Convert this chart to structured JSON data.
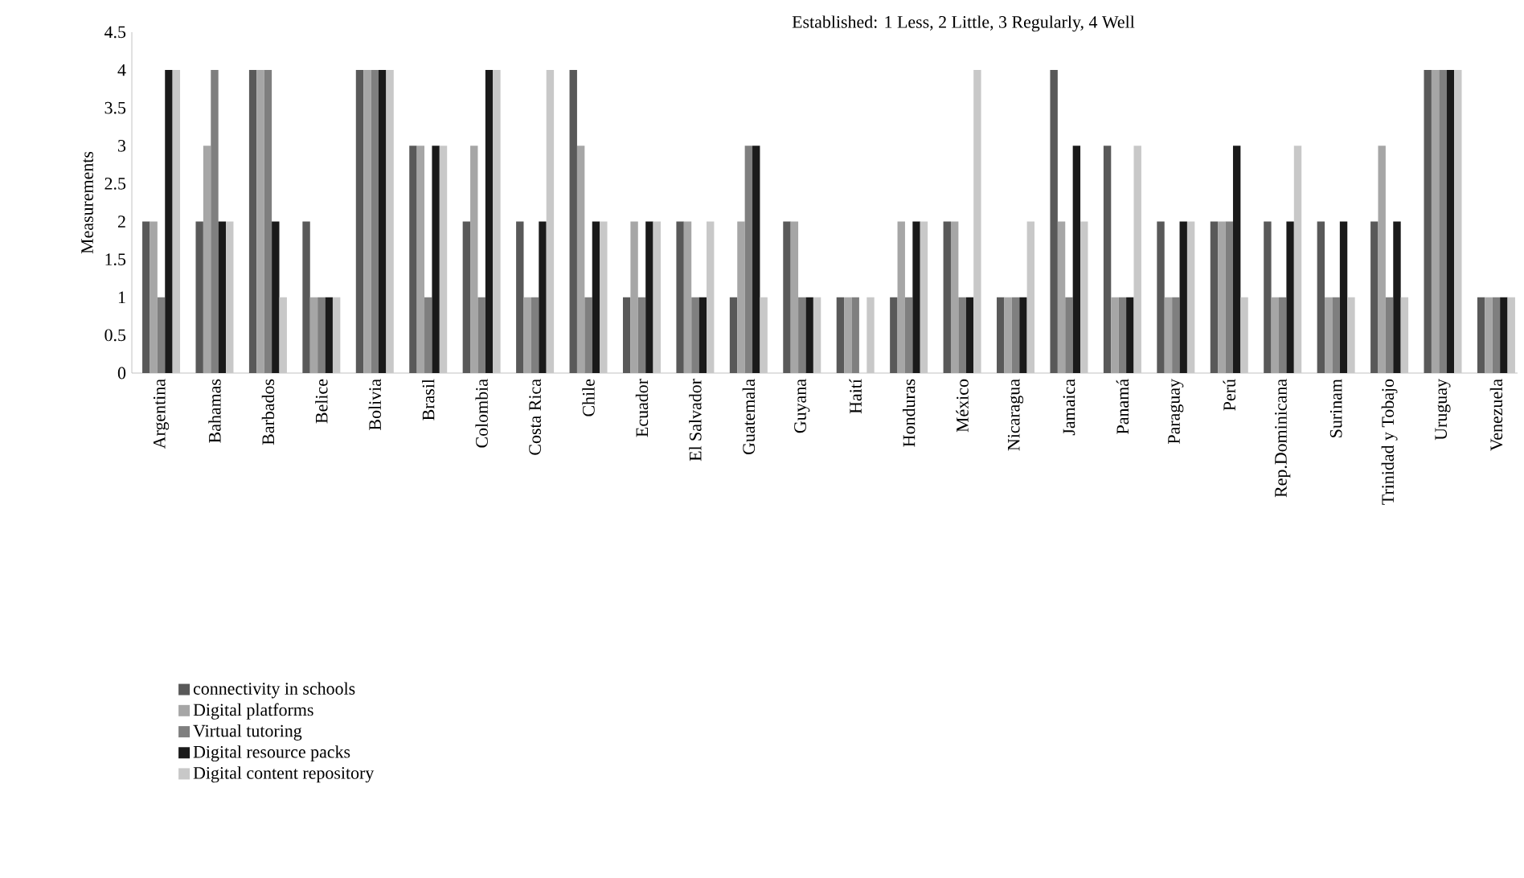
{
  "chart_data": {
    "type": "bar",
    "ylabel": "Measurements",
    "annotations": [
      "Established: 1 Less,  2 Little,   3 Regularly, 4 Well"
    ],
    "categories": [
      "Argentina",
      "Bahamas",
      "Barbados",
      "Belice",
      "Bolivia",
      "Brasil",
      "Colombia",
      "Costa Rica",
      "Chile",
      "Ecuador",
      "El Salvador",
      "Guatemala",
      "Guyana",
      "Haití",
      "Honduras",
      "México",
      "Nicaragua",
      "Jamaica",
      "Panamá",
      "Paraguay",
      "Perú",
      "Rep.Dominicana",
      "Surinam",
      "Trinidad y Tobajo",
      "Uruguay",
      "Venezuela"
    ],
    "series": [
      {
        "name": "connectivity in schools",
        "color": "#595959",
        "values": [
          2,
          2,
          4,
          2,
          4,
          3,
          2,
          2,
          4,
          1,
          2,
          1,
          2,
          1,
          1,
          2,
          1,
          4,
          3,
          2,
          2,
          2,
          2,
          2,
          4,
          1
        ]
      },
      {
        "name": "Digital platforms",
        "color": "#a6a6a6",
        "values": [
          2,
          3,
          4,
          1,
          4,
          3,
          3,
          1,
          3,
          2,
          2,
          2,
          2,
          1,
          2,
          2,
          1,
          2,
          1,
          1,
          2,
          1,
          1,
          3,
          4,
          1
        ]
      },
      {
        "name": "Virtual tutoring",
        "color": "#7f7f7f",
        "values": [
          1,
          4,
          4,
          1,
          4,
          1,
          1,
          1,
          1,
          1,
          1,
          3,
          1,
          1,
          1,
          1,
          1,
          1,
          1,
          1,
          2,
          1,
          1,
          1,
          4,
          1
        ]
      },
      {
        "name": "Digital resource packs",
        "color": "#1a1a1a",
        "values": [
          4,
          2,
          2,
          1,
          4,
          3,
          4,
          2,
          2,
          2,
          1,
          3,
          1,
          0,
          2,
          1,
          1,
          3,
          1,
          2,
          3,
          2,
          2,
          2,
          4,
          1
        ]
      },
      {
        "name": "Digital content repository",
        "color": "#c8c8c8",
        "values": [
          4,
          2,
          1,
          1,
          4,
          3,
          4,
          4,
          2,
          2,
          2,
          1,
          1,
          1,
          2,
          4,
          2,
          2,
          3,
          2,
          1,
          3,
          1,
          1,
          4,
          1
        ]
      }
    ],
    "ylim": [
      0,
      4.5
    ],
    "yticks": [
      0,
      0.5,
      1,
      1.5,
      2,
      2.5,
      3,
      3.5,
      4,
      4.5
    ],
    "legend": "bottom"
  }
}
